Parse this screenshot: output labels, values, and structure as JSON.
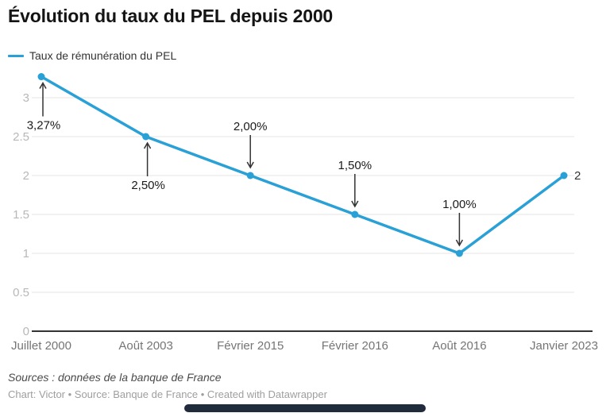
{
  "title": "Évolution du taux du PEL depuis 2000",
  "legend": {
    "label": "Taux de rémunération du PEL"
  },
  "footer": {
    "sources": "Sources : données de la banque de France",
    "credits": "Chart: Victor • Source: Banque de France • Created with Datawrapper"
  },
  "colors": {
    "line": "#29a0d6",
    "grid": "#e5e5e5",
    "axis": "#333333",
    "y_tick_label": "#b8b8b8",
    "x_tick_label": "#757575",
    "annotation_text": "#1a1a1a",
    "arrow": "#333333",
    "end_label": "#333333",
    "bottom_bar": "#202b3c"
  },
  "chart_data": {
    "type": "line",
    "title": "Évolution du taux du PEL depuis 2000",
    "series_name": "Taux de rémunération du PEL",
    "categories": [
      "Juillet 2000",
      "Août 2003",
      "Février 2015",
      "Février 2016",
      "Août 2016",
      "Janvier 2023"
    ],
    "values": [
      3.27,
      2.5,
      2.0,
      1.5,
      1.0,
      2.0
    ],
    "y_ticks": [
      0,
      0.5,
      1,
      1.5,
      2,
      2.5,
      3
    ],
    "y_tick_labels": [
      "0",
      "0.5",
      "1",
      "1.5",
      "2",
      "2.5",
      "3"
    ],
    "ylim": [
      0,
      3.27
    ],
    "grid": true,
    "legend_position": "top-left",
    "annotations": [
      {
        "index": 0,
        "text": "3,27%",
        "position": "below"
      },
      {
        "index": 1,
        "text": "2,50%",
        "position": "below"
      },
      {
        "index": 2,
        "text": "2,00%",
        "position": "above"
      },
      {
        "index": 3,
        "text": "1,50%",
        "position": "above"
      },
      {
        "index": 4,
        "text": "1,00%",
        "position": "above"
      },
      {
        "index": 5,
        "text": "2",
        "position": "right"
      }
    ]
  }
}
